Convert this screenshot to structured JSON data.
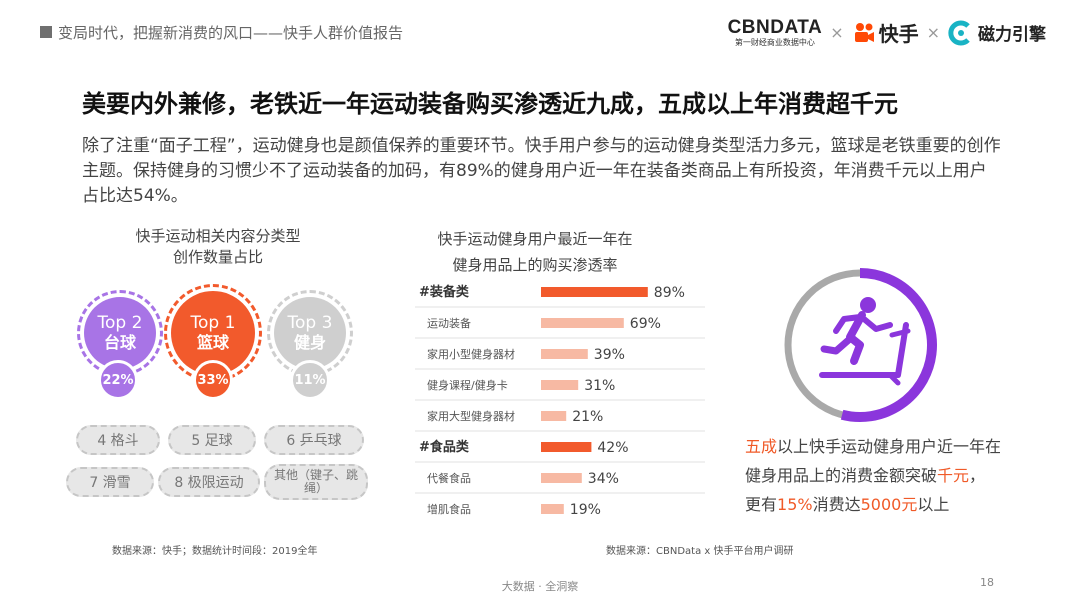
{
  "header": {
    "title": "变局时代，把握新消费的风口——快手人群价值报告",
    "logo_cbn": "CBNDATA",
    "logo_cbn_sub": "第一财经商业数据中心",
    "times": "×",
    "logo_kuaishou": "快手",
    "logo_cili": "磁力引擎"
  },
  "headline": "美要内外兼修，老铁近一年运动装备购买渗透近九成，五成以上年消费超千元",
  "intro": "除了注重“面子工程”，运动健身也是颜值保养的重要环节。快手用户参与的运动健身类型活力多元，篮球是老铁重要的创作主题。保持健身的习惯少不了运动装备的加码，有89%的健身用户近一年在装备类商品上有所投资，年消费千元以上用户占比达54%。",
  "left_panel": {
    "title_line1": "快手运动相关内容分类型",
    "title_line2": "创作数量占比",
    "top": [
      {
        "rank": "Top 2",
        "name": "台球",
        "pct": "22%",
        "color": "#a874e6"
      },
      {
        "rank": "Top 1",
        "name": "篮球",
        "pct": "33%",
        "color": "#f25a2c"
      },
      {
        "rank": "Top 3",
        "name": "健身",
        "pct": "11%",
        "color": "#cfcfcf"
      }
    ],
    "others": [
      "4 格斗",
      "5 足球",
      "6 乒乓球",
      "7 滑雪",
      "8 极限运动",
      "其他（键子、跳绳）"
    ],
    "source": "数据来源：快手；数据统计时间段：2019全年"
  },
  "chart_data": {
    "type": "bar",
    "title_line1": "快手运动健身用户最近一年在",
    "title_line2": "健身用品上的购买渗透率",
    "categories": [
      "#装备类",
      "运动装备",
      "家用小型健身器材",
      "健身课程/健身卡",
      "家用大型健身器材",
      "#食品类",
      "代餐食品",
      "增肌食品"
    ],
    "values": [
      89,
      69,
      39,
      31,
      21,
      42,
      34,
      19
    ],
    "is_group": [
      true,
      false,
      false,
      false,
      false,
      true,
      false,
      false
    ],
    "unit": "%",
    "xlim": [
      0,
      100
    ],
    "colors": {
      "group": "#f25a2c",
      "item": "#f7b9a3"
    },
    "source": "数据来源：CBNData x 快手平台用户调研"
  },
  "right_panel": {
    "ring_value": 54,
    "ring_colors": {
      "fill": "#8b36dc",
      "rest": "#a9a9a9"
    },
    "icon_name": "treadmill-runner-icon",
    "line1_hl": "五成",
    "line1_rest": "以上快手运动健身用户近一年在",
    "line2_pre": "健身用品上的消费金额突破",
    "line2_hl": "千元",
    "line2_post": "，",
    "line3_pre": "更有",
    "line3_hl1": "15%",
    "line3_mid": "消费达",
    "line3_hl2": "5000元",
    "line3_post": "以上"
  },
  "footer": {
    "text": "大数据 · 全洞察",
    "page": "18"
  }
}
